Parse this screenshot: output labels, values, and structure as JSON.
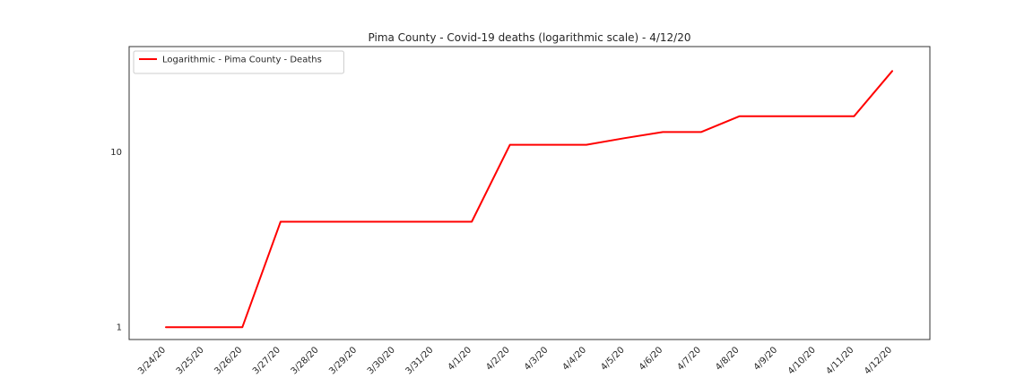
{
  "chart_data": {
    "type": "line",
    "title": "Pima County - Covid-19 deaths (logarithmic scale) - 4/12/20",
    "xlabel": "",
    "ylabel": "",
    "yscale": "log",
    "ylim": [
      0.85,
      40
    ],
    "yticks": [
      1,
      10
    ],
    "ytick_labels": [
      "1",
      "10"
    ],
    "grid": false,
    "legend_position": "top-left",
    "categories": [
      "3/24/20",
      "3/25/20",
      "3/26/20",
      "3/27/20",
      "3/28/20",
      "3/29/20",
      "3/30/20",
      "3/31/20",
      "4/1/20",
      "4/2/20",
      "4/3/20",
      "4/4/20",
      "4/5/20",
      "4/6/20",
      "4/7/20",
      "4/8/20",
      "4/9/20",
      "4/10/20",
      "4/11/20",
      "4/12/20"
    ],
    "series": [
      {
        "name": "Logarithmic - Pima County - Deaths",
        "color": "#ff0000",
        "values": [
          1,
          1,
          1,
          4,
          4,
          4,
          4,
          4,
          4,
          11,
          11,
          11,
          12,
          13,
          13,
          16,
          16,
          16,
          16,
          29
        ]
      }
    ]
  }
}
